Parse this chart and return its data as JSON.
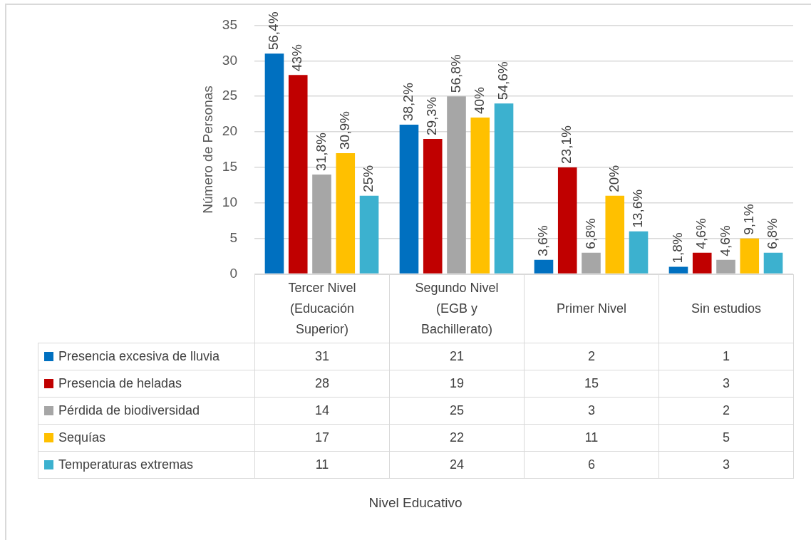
{
  "chart_data": {
    "type": "bar",
    "ylabel": "Número de Personas",
    "categories": [
      "Tercer Nivel (Educación Superior)",
      "Segundo Nivel (EGB y Bachillerato)",
      "Primer Nivel",
      "Sin estudios"
    ],
    "series": [
      {
        "name": "Presencia excesiva de lluvia",
        "color": "#0070c0",
        "values": [
          31,
          21,
          2,
          1
        ]
      },
      {
        "name": "Presencia de heladas",
        "color": "#c00000",
        "values": [
          28,
          19,
          15,
          3
        ]
      },
      {
        "name": "Pérdida de biodiversidad",
        "color": "#a6a6a6",
        "values": [
          14,
          25,
          3,
          2
        ]
      },
      {
        "name": "Sequías",
        "color": "#ffc000",
        "values": [
          17,
          22,
          11,
          5
        ]
      },
      {
        "name": "Temperaturas extremas",
        "color": "#3cb1cf",
        "values": [
          11,
          24,
          6,
          3
        ]
      }
    ],
    "annotations": [
      "56,4%",
      "43%",
      "31,8%",
      "30,9%",
      "25%",
      "38,2%",
      "29,3%",
      "56,8%",
      "40%",
      "54,6%",
      "3,6%",
      "23,1%",
      "6,8%",
      "20%",
      "13,6%",
      "1,8%",
      "4,6%",
      "4,6%",
      "9,1%",
      "6,8%",
      "Nivel Educativo"
    ],
    "ylim": [
      0,
      35
    ],
    "yticks": [
      0,
      5,
      10,
      15,
      20,
      25,
      30,
      35
    ],
    "grid": "y",
    "legend": "bottom",
    "data_labels": true
  }
}
